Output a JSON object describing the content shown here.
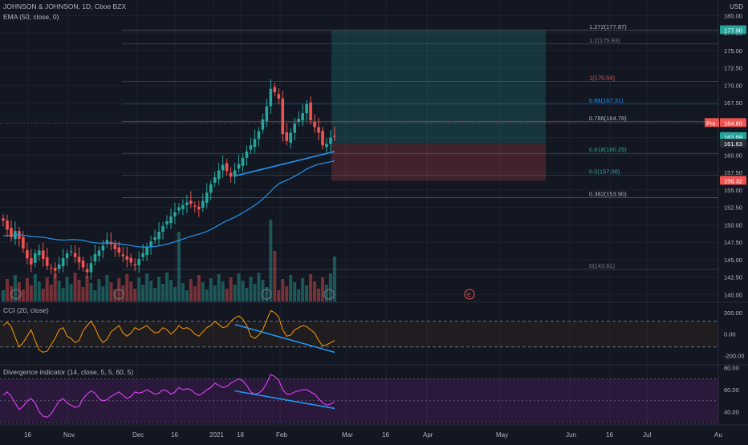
{
  "header": {
    "title": "JOHNSON & JOHNSON, 1D, Cboe BZX",
    "ema_label": "EMA (50, close, 0)",
    "currency": "USD"
  },
  "panes": {
    "cci_label": "CCI (20, close)",
    "div_label": "Divergence indicator (14, close, 5, 5, 60, 5)"
  },
  "colors": {
    "bg": "#131722",
    "up": "#26a69a",
    "down": "#ef5350",
    "ema": "#2196f3",
    "cci": "#ff9800",
    "div": "#e040fb",
    "trend": "#2196f3"
  },
  "chart_data": [
    {
      "type": "candlestick",
      "title": "JOHNSON & JOHNSON, 1D, Cboe BZX",
      "ylim": [
        139,
        182
      ],
      "yticks": [
        "180.00",
        "177.50",
        "175.00",
        "172.50",
        "170.00",
        "167.50",
        "165.00",
        "162.50",
        "160.00",
        "157.50",
        "155.00",
        "152.50",
        "150.00",
        "147.50",
        "145.00",
        "142.50",
        "140.00"
      ],
      "xticks": [
        "16",
        "Nov",
        "Dec",
        "16",
        "2021",
        "18",
        "Feb",
        "Mar",
        "16",
        "Apr",
        "May",
        "Jun",
        "16",
        "Jul",
        "Au"
      ],
      "closes": [
        150.6,
        149.3,
        148.2,
        149.1,
        148.0,
        146.6,
        145.2,
        144.3,
        145.9,
        146.3,
        145.1,
        144.1,
        143.8,
        143.4,
        144.3,
        145.2,
        145.9,
        146.2,
        145.4,
        144.6,
        143.9,
        143.2,
        144.5,
        145.8,
        146.3,
        147.0,
        147.8,
        147.2,
        146.5,
        146.0,
        145.5,
        145.0,
        144.6,
        144.2,
        145.1,
        145.9,
        146.8,
        147.6,
        148.2,
        149.0,
        149.8,
        150.5,
        151.2,
        151.8,
        152.5,
        152.8,
        153.2,
        153.0,
        152.6,
        152.2,
        153.4,
        154.6,
        155.8,
        156.8,
        157.8,
        158.6,
        157.7,
        156.9,
        157.8,
        158.7,
        159.6,
        160.5,
        161.4,
        162.3,
        163.4,
        165.1,
        167.0,
        169.5,
        169.0,
        168.1,
        163.0,
        162.0,
        163.2,
        164.5,
        165.2,
        166.0,
        167.3,
        165.0,
        164.0,
        163.2,
        161.4,
        161.6,
        162.5,
        162.6
      ],
      "fib_levels": [
        {
          "label": "1.272(177.87)",
          "value": 177.87,
          "color": "#b2b5be"
        },
        {
          "label": "1.2(175.93)",
          "value": 175.93,
          "color": "#787b86"
        },
        {
          "label": "1(170.54)",
          "value": 170.54,
          "color": "#ef5350"
        },
        {
          "label": "0.88(167.31)",
          "value": 167.31,
          "color": "#2196f3"
        },
        {
          "label": "0.786(164.78)",
          "value": 164.78,
          "color": "#b2b5be"
        },
        {
          "label": "0.618(160.25)",
          "value": 160.25,
          "color": "#26a69a"
        },
        {
          "label": "0.5(157.08)",
          "value": 157.08,
          "color": "#26a69a"
        },
        {
          "label": "0.382(153.90)",
          "value": 153.9,
          "color": "#b2b5be"
        },
        {
          "label": "0(143.61)",
          "value": 143.61,
          "color": "#787b86"
        }
      ],
      "price_tags": [
        {
          "label": "177.90",
          "value": 177.9,
          "color": "#26a69a"
        },
        {
          "label": "164.60",
          "value": 164.6,
          "color": "#ef5350",
          "prefix": "Pre"
        },
        {
          "label": "162.59",
          "value": 162.59,
          "color": "#26a69a"
        },
        {
          "label": "161.63",
          "value": 161.63,
          "color": "#2a2e39"
        },
        {
          "label": "156.32",
          "value": 156.32,
          "color": "#ef5350"
        }
      ],
      "position": {
        "entry": 161.6,
        "target": 177.9,
        "stop": 156.32
      },
      "trendline": {
        "from": 157.0,
        "to": 160.5
      },
      "event_marker": "E"
    },
    {
      "type": "line",
      "title": "CCI (20, close)",
      "ylim": [
        -280,
        290
      ],
      "yticks": [
        "200.00",
        "0.00",
        "-200.00"
      ],
      "bands": [
        120,
        -120
      ],
      "values": [
        80,
        110,
        70,
        -30,
        -120,
        -80,
        -20,
        40,
        -60,
        -150,
        -170,
        -160,
        -100,
        -40,
        40,
        60,
        -20,
        -40,
        -80,
        -60,
        30,
        80,
        120,
        60,
        -30,
        -80,
        -50,
        20,
        50,
        80,
        10,
        -20,
        10,
        60,
        40,
        60,
        80,
        40,
        10,
        20,
        60,
        40,
        0,
        30,
        80,
        50,
        60,
        40,
        0,
        -20,
        20,
        60,
        80,
        120,
        90,
        60,
        70,
        120,
        150,
        170,
        140,
        80,
        -20,
        -40,
        -10,
        40,
        130,
        220,
        200,
        160,
        40,
        -20,
        -10,
        40,
        60,
        80,
        70,
        40,
        10,
        -60,
        -110,
        -100,
        -80,
        -60
      ],
      "trendline": {
        "from": 90,
        "to": -170
      }
    },
    {
      "type": "line",
      "title": "Divergence indicator (14, close, 5, 5, 60, 5)",
      "ylim": [
        28,
        82
      ],
      "yticks": [
        "80.00",
        "60.00",
        "40.00"
      ],
      "bands": [
        70,
        50,
        30
      ],
      "values": [
        55,
        58,
        54,
        48,
        42,
        45,
        50,
        52,
        48,
        40,
        36,
        35,
        38,
        44,
        50,
        52,
        48,
        46,
        44,
        45,
        52,
        56,
        59,
        57,
        52,
        50,
        51,
        54,
        56,
        58,
        55,
        52,
        54,
        58,
        57,
        58,
        60,
        58,
        56,
        57,
        60,
        59,
        56,
        58,
        62,
        60,
        61,
        60,
        57,
        55,
        57,
        60,
        62,
        66,
        64,
        62,
        63,
        66,
        68,
        70,
        68,
        64,
        58,
        56,
        57,
        60,
        66,
        74,
        72,
        69,
        60,
        56,
        56,
        58,
        59,
        60,
        60,
        58,
        56,
        52,
        48,
        46,
        47,
        49
      ],
      "trendline": {
        "from": 59,
        "to": 43
      }
    }
  ]
}
